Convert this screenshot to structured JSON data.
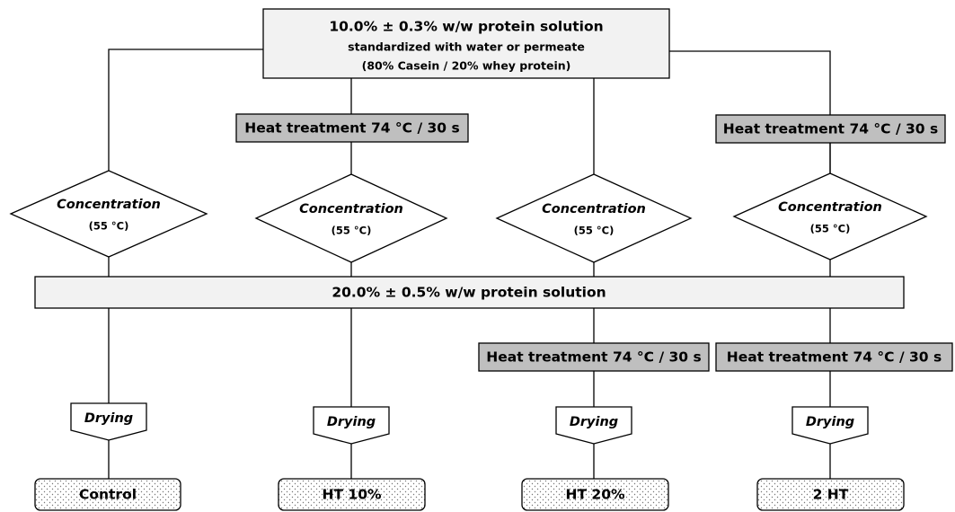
{
  "top": {
    "title": "10.0% ± 0.3% w/w protein solution",
    "line2": "standardized with water or permeate",
    "line3": "(80% Casein / 20% whey protein)"
  },
  "middle": "20.0% ± 0.5% w/w protein solution",
  "columns": [
    {
      "concentration": "Concentration",
      "temperature": "(55 °C)",
      "drying": "Drying",
      "output": "Control"
    },
    {
      "heat_before": "Heat treatment 74 °C / 30 s",
      "concentration": "Concentration",
      "temperature": "(55 °C)",
      "drying": "Drying",
      "output": "HT 10%"
    },
    {
      "concentration": "Concentration",
      "temperature": "(55 °C)",
      "heat_after": "Heat treatment 74 °C / 30 s",
      "drying": "Drying",
      "output": "HT 20%"
    },
    {
      "heat_before": "Heat treatment 74 °C / 30 s",
      "concentration": "Concentration",
      "temperature": "(55 °C)",
      "heat_after": "Heat treatment 74 °C / 30 s",
      "drying": "Drying",
      "output": "2 HT"
    }
  ]
}
